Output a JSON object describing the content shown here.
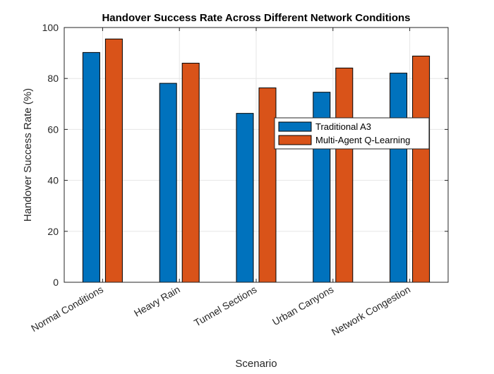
{
  "chart_data": {
    "type": "bar",
    "title": "Handover Success Rate Across Different Network Conditions",
    "xlabel": "Scenario",
    "ylabel": "Handover Success Rate (%)",
    "ylim": [
      0,
      100
    ],
    "yticks": [
      0,
      20,
      40,
      60,
      80,
      100
    ],
    "grid": true,
    "legend_position": "center-right",
    "categories": [
      "Normal Conditions",
      "Heavy Rain",
      "Tunnel Sections",
      "Urban Canyons",
      "Network Congestion"
    ],
    "series": [
      {
        "name": "Traditional A3",
        "color": "#0072BD",
        "values": [
          90.2,
          78.1,
          66.3,
          74.6,
          82.1
        ]
      },
      {
        "name": "Multi-Agent Q-Learning",
        "color": "#D95319",
        "values": [
          95.5,
          86.0,
          76.3,
          84.1,
          88.8
        ]
      }
    ]
  }
}
